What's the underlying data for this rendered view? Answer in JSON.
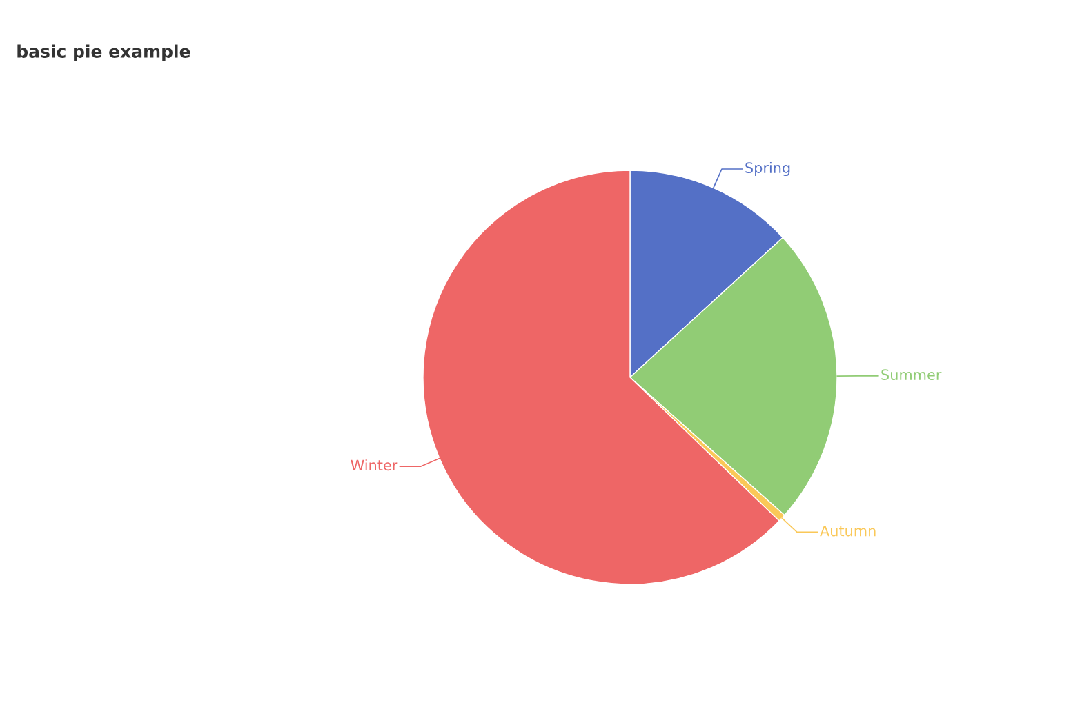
{
  "chart_data": {
    "type": "pie",
    "title": "basic pie example",
    "categories": [
      "Spring",
      "Summer",
      "Autumn",
      "Winter"
    ],
    "values": [
      13.2,
      23.4,
      0.6,
      62.8
    ],
    "colors": [
      "#5470c6",
      "#91cc75",
      "#fac858",
      "#ee6666"
    ]
  }
}
